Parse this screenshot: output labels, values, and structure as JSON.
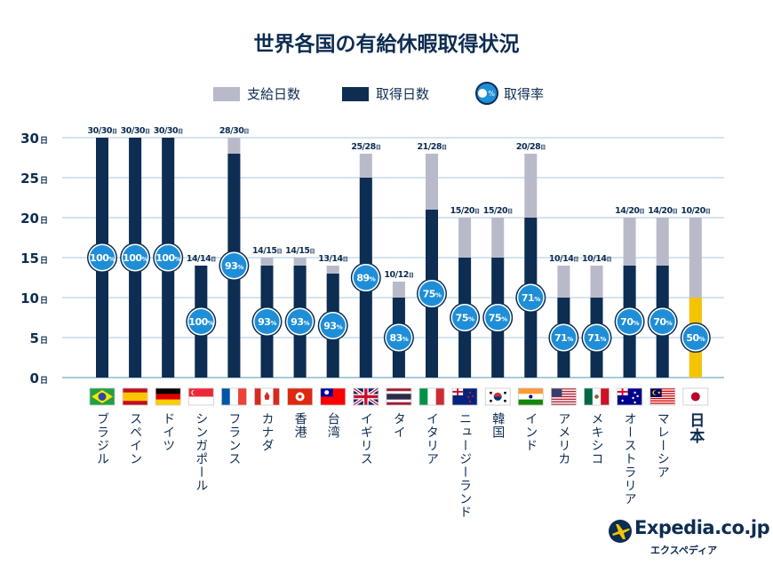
{
  "title": "世界各国の有給休暇取得状況",
  "legend": {
    "supplied": "支給日数",
    "taken": "取得日数",
    "rate": "取得率",
    "rate_symbol": "%"
  },
  "colors": {
    "supplied": "#b9bac9",
    "taken": "#0d2d52",
    "taken_highlight": "#f5c400",
    "rate_circle": "#1f8ed8",
    "grid": "#a9c9dd"
  },
  "logo": {
    "name": "Expedia.co.jp",
    "subtitle": "エクスペディア"
  },
  "chart_data": {
    "type": "bar",
    "title": "世界各国の有給休暇取得状況",
    "ylim": [
      0,
      30
    ],
    "yticks": [
      0,
      5,
      10,
      15,
      20,
      25,
      30
    ],
    "ytick_unit": "日",
    "grid": true,
    "legend_placement": "top",
    "categories": [
      "ブラジル",
      "スペイン",
      "ドイツ",
      "シンガポール",
      "フランス",
      "カナダ",
      "香港",
      "台湾",
      "イギリス",
      "タイ",
      "イタリア",
      "ニュージーランド",
      "韓国",
      "インド",
      "アメリカ",
      "メキシコ",
      "オーストラリア",
      "マレーシア",
      "日本"
    ],
    "flags": [
      "brazil-flag",
      "spain-flag",
      "germany-flag",
      "singapore-flag",
      "france-flag",
      "canada-flag",
      "hong-kong-flag",
      "taiwan-flag",
      "uk-flag",
      "thailand-flag",
      "italy-flag",
      "new-zealand-flag",
      "korea-flag",
      "india-flag",
      "usa-flag",
      "mexico-flag",
      "australia-flag",
      "malaysia-flag",
      "japan-flag"
    ],
    "series": [
      {
        "name": "支給日数",
        "values": [
          30,
          30,
          30,
          14,
          30,
          15,
          15,
          14,
          28,
          12,
          28,
          20,
          20,
          28,
          14,
          14,
          20,
          20,
          20
        ]
      },
      {
        "name": "取得日数",
        "values": [
          30,
          30,
          30,
          14,
          28,
          14,
          14,
          13,
          25,
          10,
          21,
          15,
          15,
          20,
          10,
          10,
          14,
          14,
          10
        ]
      },
      {
        "name": "取得率",
        "values": [
          100,
          100,
          100,
          100,
          93,
          93,
          93,
          93,
          89,
          83,
          75,
          75,
          75,
          71,
          71,
          71,
          70,
          70,
          50
        ]
      }
    ],
    "highlight": "日本"
  }
}
